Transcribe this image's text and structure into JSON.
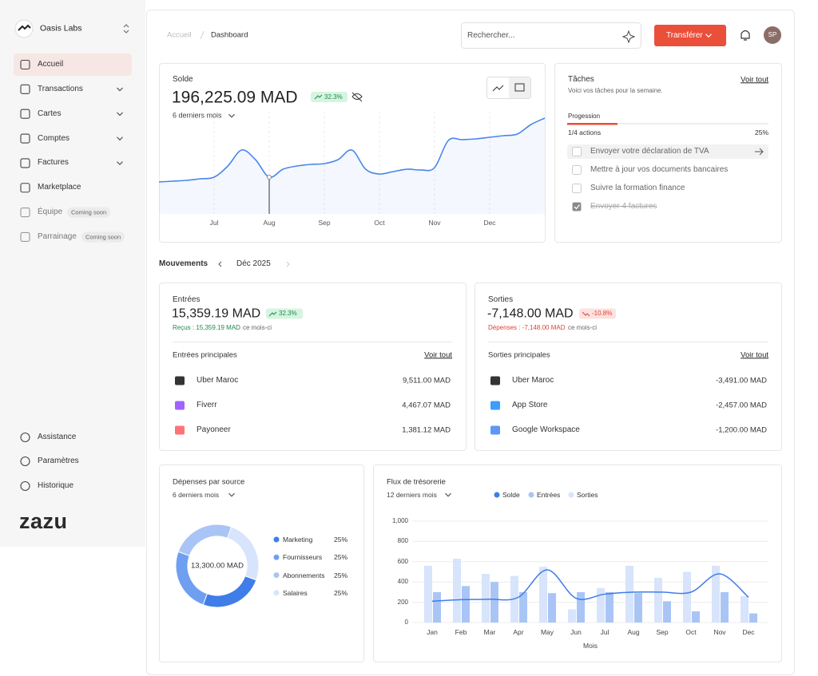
{
  "sidebar": {
    "org": "Oasis Labs",
    "nav": [
      {
        "label": "Accueil"
      },
      {
        "label": "Transactions"
      },
      {
        "label": "Cartes"
      },
      {
        "label": "Comptes"
      },
      {
        "label": "Factures"
      },
      {
        "label": "Marketplace"
      },
      {
        "label": "Équipe",
        "badge": "Coming soon"
      },
      {
        "label": "Parrainage",
        "badge": "Coming soon"
      }
    ],
    "footer": [
      "Assistance",
      "Paramètres",
      "Historique"
    ],
    "brand": "zazu"
  },
  "header": {
    "breadcrumb": [
      "Accueil",
      "Dashboard"
    ],
    "search_placeholder": "Rechercher...",
    "transfer_button": "Transférer",
    "avatar": "SP"
  },
  "balance": {
    "label": "Solde",
    "amount": "196,225.09 MAD",
    "change": "32.3%",
    "period": "6 derniers mois",
    "chart": {
      "type": "line",
      "color": "#4a86e8",
      "x": [
        0,
        0.25,
        0.5,
        0.75,
        1,
        1.25,
        1.5,
        1.75,
        2,
        2.25,
        2.5,
        2.75,
        3,
        3.25,
        3.5,
        3.75,
        4,
        4.25,
        4.5,
        4.75,
        5,
        5.25,
        5.5,
        5.75,
        6,
        6.25,
        6.5,
        6.75,
        7
      ],
      "values": [
        40,
        41,
        42,
        44,
        46,
        60,
        80,
        68,
        46,
        56,
        60,
        62,
        63,
        68,
        80,
        56,
        50,
        53,
        56,
        55,
        58,
        92,
        93,
        94,
        96,
        98,
        100,
        112,
        120
      ],
      "xlim": [
        0,
        7
      ],
      "ylim": [
        0,
        130
      ],
      "xticks": [
        {
          "value": 1,
          "label": "Jul"
        },
        {
          "value": 2,
          "label": "Aug"
        },
        {
          "value": 3,
          "label": "Sep"
        },
        {
          "value": 4,
          "label": "Oct"
        },
        {
          "value": 5,
          "label": "Nov"
        },
        {
          "value": 6,
          "label": "Dec"
        }
      ]
    }
  },
  "tasks": {
    "title": "Tâches",
    "link": "Voir tout",
    "subtitle": "Voici vos tâches pour la semaine.",
    "progress_label": "Progession",
    "actions": "1/4 actions",
    "progress": {
      "value": 25,
      "label": "25%"
    },
    "items": [
      {
        "text": "Envoyer votre déclaration de TVA",
        "done": false
      },
      {
        "text": "Mettre à jour vos documents bancaires",
        "done": false
      },
      {
        "text": "Suivre la formation finance",
        "done": false
      },
      {
        "text": "Envoyer 4 factures",
        "done": true
      }
    ]
  },
  "movements": {
    "title": "Mouvements",
    "month": "Déc 2025"
  },
  "inflows": {
    "title": "Entrées",
    "amount": "15,359.19 MAD",
    "change": "32.3%",
    "note": "Reçus : 15,359.19 MAD",
    "note_suffix": "ce mois-ci",
    "section": "Entrées principales",
    "link": "Voir tout",
    "rows": [
      {
        "name": "Uber Maroc",
        "amount": "9,511.00 MAD"
      },
      {
        "name": "Fiverr",
        "amount": "4,467.07 MAD"
      },
      {
        "name": "Payoneer",
        "amount": "1,381.12 MAD"
      }
    ]
  },
  "outflows": {
    "title": "Sorties",
    "amount": "-7,148.00 MAD",
    "change": "-10.8%",
    "note": "Dépenses : -7,148.00 MAD",
    "note_suffix": "ce mois-ci",
    "section": "Sorties principales",
    "link": "Voir tout",
    "rows": [
      {
        "name": "Uber Maroc",
        "amount": "-3,491.00 MAD"
      },
      {
        "name": "App Store",
        "amount": "-2,457.00 MAD"
      },
      {
        "name": "Google Workspace",
        "amount": "-1,200.00 MAD"
      }
    ]
  },
  "expenses": {
    "title": "Dépenses par source",
    "period": "6 derniers mois",
    "chart": {
      "type": "pie",
      "center_label": "13,300.00 MAD",
      "categories": [
        "Marketing",
        "Fournisseurs",
        "Abonnements",
        "Salaires"
      ],
      "values": [
        25,
        25,
        25,
        25
      ],
      "value_labels": [
        "25%",
        "25%",
        "25%",
        "25%"
      ],
      "colors": [
        "#3f7de8",
        "#6f9ff0",
        "#a9c5f5",
        "#d7e4fb"
      ]
    }
  },
  "cashflow": {
    "title": "Flux de trésorerie",
    "period": "12 derniers mois",
    "chart": {
      "type": "bar",
      "categories": [
        "Jan",
        "Feb",
        "Mar",
        "Apr",
        "May",
        "Jun",
        "Jul",
        "Aug",
        "Sep",
        "Oct",
        "Nov",
        "Dec"
      ],
      "xlabel": "Mois",
      "ylim": [
        0,
        1000
      ],
      "yticks": [
        0,
        200,
        400,
        600,
        800,
        {
          "value": 1000,
          "label": "1,000"
        }
      ],
      "grid": true,
      "series": [
        {
          "name": "Solde",
          "type": "line",
          "color": "#3f7de8",
          "values": [
            210,
            225,
            230,
            250,
            520,
            240,
            280,
            300,
            300,
            300,
            480,
            250
          ]
        },
        {
          "name": "Entrées",
          "color": "#a9c5f5",
          "values": [
            300,
            360,
            400,
            300,
            290,
            300,
            300,
            290,
            210,
            110,
            300,
            90
          ]
        },
        {
          "name": "Sorties",
          "color": "#d7e4fb",
          "values": [
            560,
            630,
            480,
            460,
            550,
            130,
            340,
            560,
            440,
            500,
            560,
            260
          ]
        }
      ]
    }
  }
}
